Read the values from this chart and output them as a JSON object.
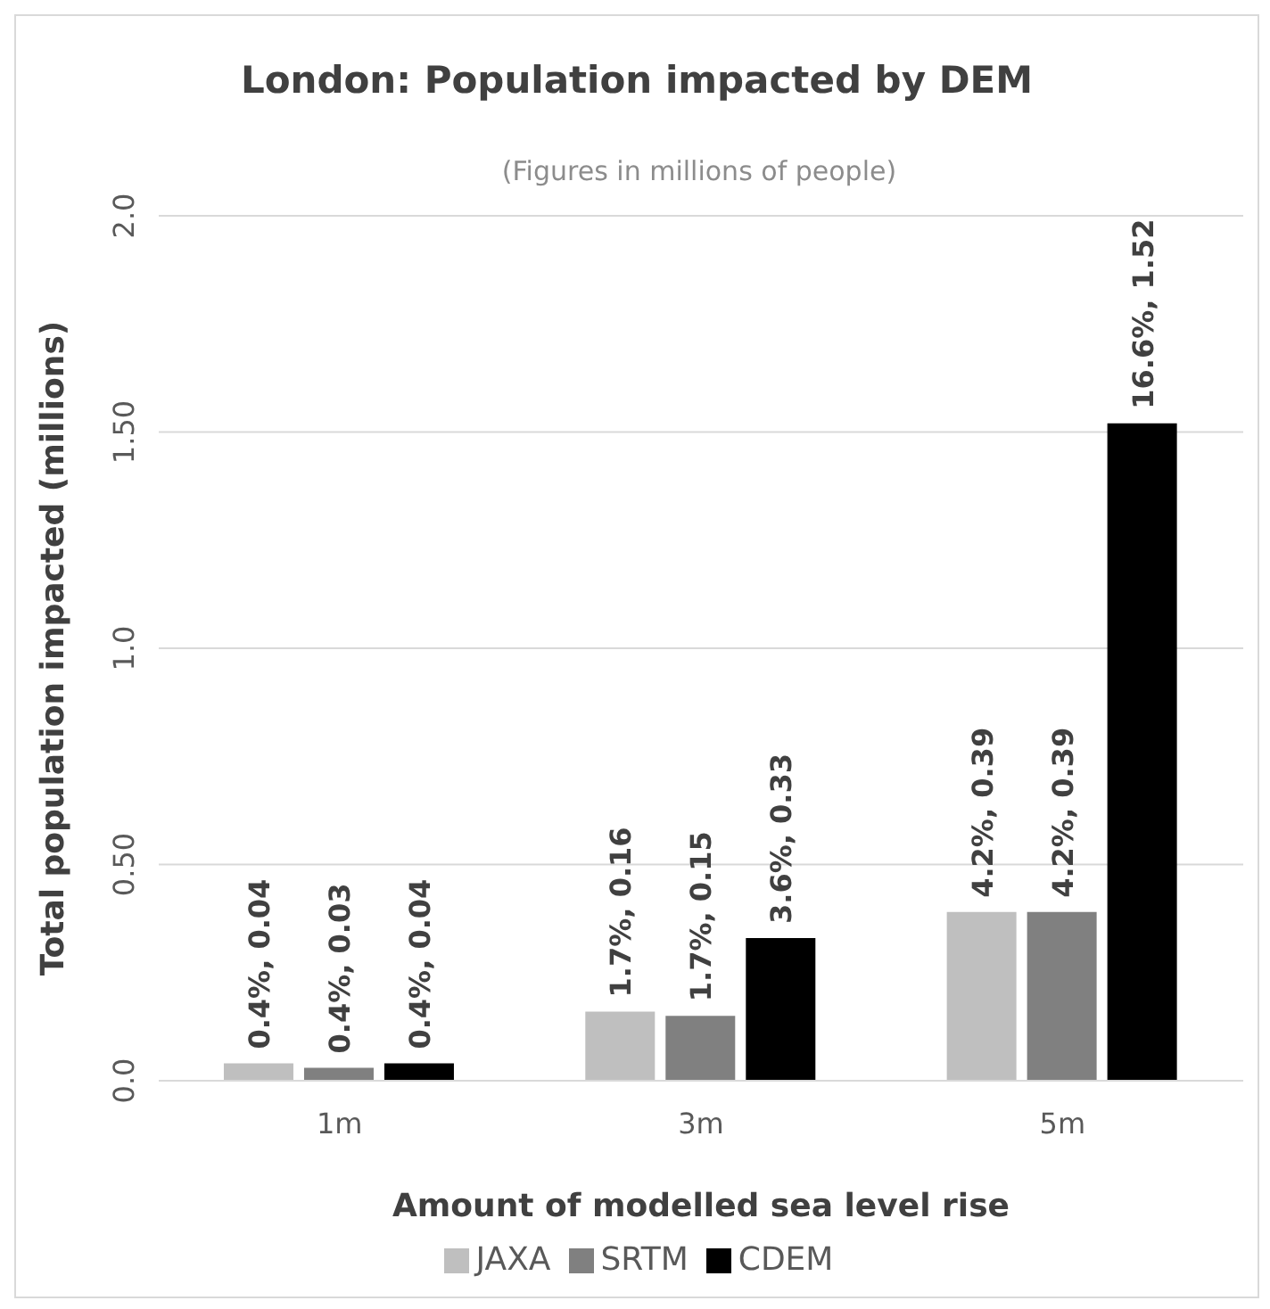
{
  "chart_data": {
    "type": "bar",
    "title": "London: Population impacted by DEM",
    "subtitle": "(Figures in millions of people)",
    "xlabel": "Amount of modelled sea level rise",
    "ylabel": "Total  population impacted (millions)",
    "categories": [
      "1m",
      "3m",
      "5m"
    ],
    "series": [
      {
        "name": "JAXA",
        "color": "#bfbfbf",
        "values": [
          0.04,
          0.16,
          0.39
        ],
        "value_labels": [
          "0.4%, 0.04",
          "1.7%, 0.16",
          "4.2%, 0.39"
        ]
      },
      {
        "name": "SRTM",
        "color": "#808080",
        "values": [
          0.03,
          0.15,
          0.39
        ],
        "value_labels": [
          "0.4%, 0.03",
          "1.7%, 0.15",
          "4.2%, 0.39"
        ]
      },
      {
        "name": "CDEM",
        "color": "#000000",
        "values": [
          0.04,
          0.33,
          1.52
        ],
        "value_labels": [
          "0.4%, 0.04",
          "3.6%, 0.33",
          "16.6%, 1.52"
        ]
      }
    ],
    "ylim": [
      0,
      2
    ],
    "yticks": [
      {
        "value": 0,
        "label": "0.0"
      },
      {
        "value": 0.5,
        "label": "0.50"
      },
      {
        "value": 1,
        "label": "1.0"
      },
      {
        "value": 1.5,
        "label": "1.50"
      },
      {
        "value": 2,
        "label": "2.0"
      }
    ],
    "grid": "y",
    "legend": "bottom"
  }
}
